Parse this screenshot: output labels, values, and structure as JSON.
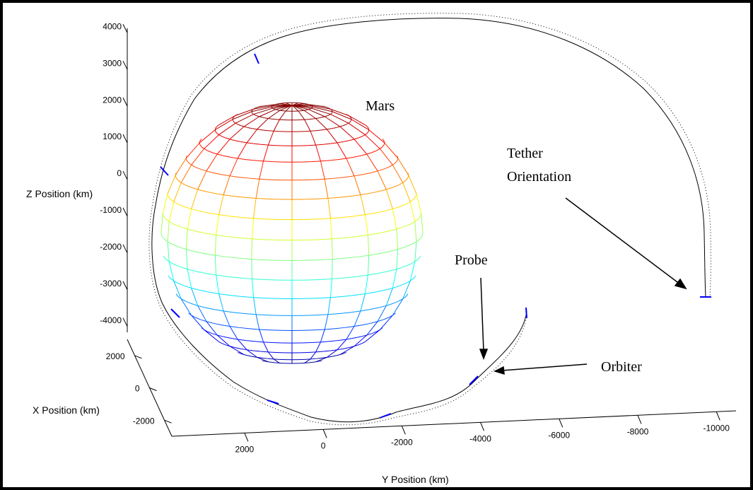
{
  "chart_data": {
    "type": "line3d",
    "zlabel": "Z Position (km)",
    "xlabel": "X Position (km)",
    "ylabel": "Y Position (km)",
    "zlim": [
      -4160,
      4120
    ],
    "zticks": [
      4000,
      3000,
      2000,
      1000,
      0,
      -1000,
      -2000,
      -3000,
      -4000
    ],
    "xlim": [
      3000,
      -3000
    ],
    "xticks": [
      2000,
      0,
      -2000
    ],
    "ylim": [
      3850,
      -10500
    ],
    "yticks": [
      2000,
      0,
      -2000,
      -4000,
      -6000,
      -8000,
      -10000
    ],
    "annotations": [
      "Mars",
      "Tether",
      "Orientation",
      "Probe",
      "Orbiter"
    ],
    "line_color": "#000000",
    "marker_color": "#0000ff"
  }
}
